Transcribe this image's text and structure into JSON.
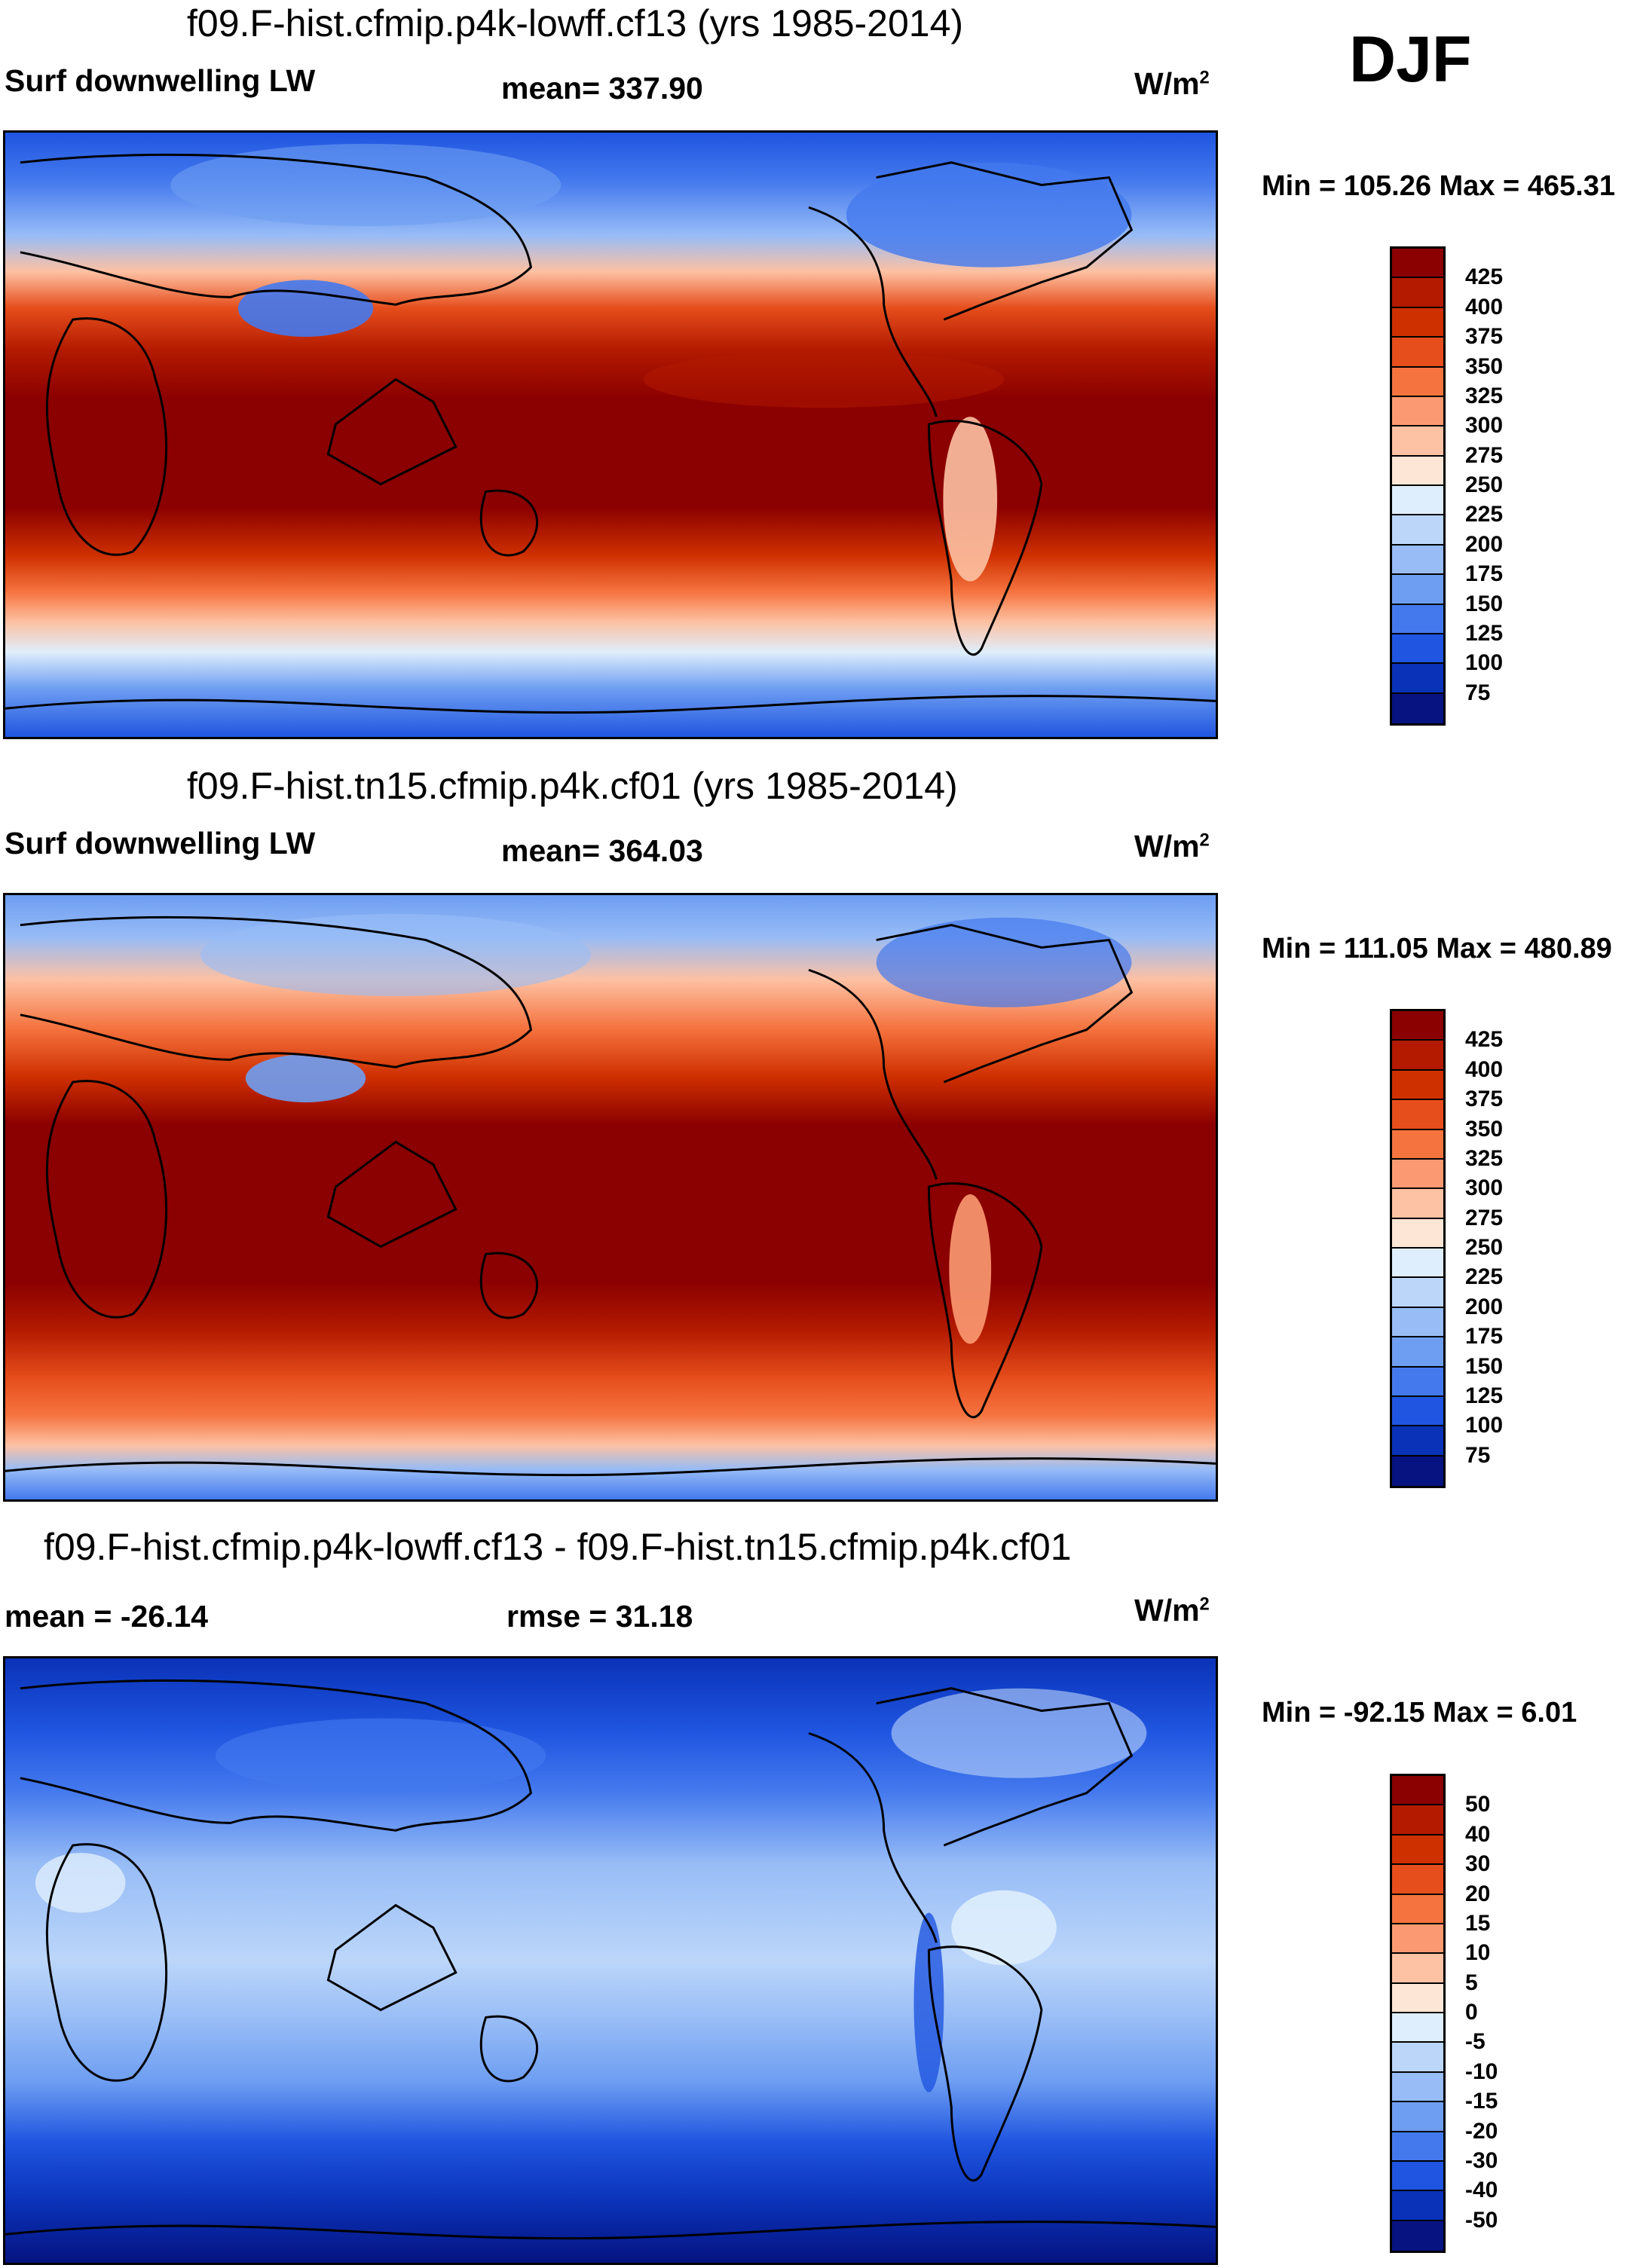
{
  "season": "DJF",
  "unit_main": "W/m",
  "unit_sup": "2",
  "panels": [
    {
      "title": "f09.F-hist.cfmip.p4k-lowff.cf13 (yrs 1985-2014)",
      "left_label": "Surf downwelling LW",
      "center_label": "mean= 337.90",
      "minmax": "Min = 105.26 Max = 465.31",
      "colorbar_labels": [
        "425",
        "400",
        "375",
        "350",
        "325",
        "300",
        "275",
        "250",
        "225",
        "200",
        "175",
        "150",
        "125",
        "100",
        "75"
      ],
      "colorbar_colors": [
        "#8b0000",
        "#b31a00",
        "#cf3000",
        "#e64e1c",
        "#f5733f",
        "#fb9a72",
        "#fdc1a3",
        "#fee6d6",
        "#deeefc",
        "#bcd6fa",
        "#97bcf6",
        "#6e9ef2",
        "#4479ee",
        "#1f55e0",
        "#0a32b8",
        "#061380"
      ]
    },
    {
      "title": "f09.F-hist.tn15.cfmip.p4k.cf01 (yrs 1985-2014)",
      "left_label": "Surf downwelling LW",
      "center_label": "mean= 364.03",
      "minmax": "Min = 111.05 Max = 480.89",
      "colorbar_labels": [
        "425",
        "400",
        "375",
        "350",
        "325",
        "300",
        "275",
        "250",
        "225",
        "200",
        "175",
        "150",
        "125",
        "100",
        "75"
      ],
      "colorbar_colors": [
        "#8b0000",
        "#b31a00",
        "#cf3000",
        "#e64e1c",
        "#f5733f",
        "#fb9a72",
        "#fdc1a3",
        "#fee6d6",
        "#deeefc",
        "#bcd6fa",
        "#97bcf6",
        "#6e9ef2",
        "#4479ee",
        "#1f55e0",
        "#0a32b8",
        "#061380"
      ]
    },
    {
      "title": "f09.F-hist.cfmip.p4k-lowff.cf13 - f09.F-hist.tn15.cfmip.p4k.cf01",
      "left_label": "mean = -26.14",
      "center_label": "rmse =  31.18",
      "minmax": "Min = -92.15 Max =   6.01",
      "colorbar_labels": [
        "50",
        "40",
        "30",
        "20",
        "15",
        "10",
        "5",
        "0",
        "-5",
        "-10",
        "-15",
        "-20",
        "-30",
        "-40",
        "-50"
      ],
      "colorbar_colors": [
        "#8b0000",
        "#b31a00",
        "#cf3000",
        "#e64e1c",
        "#f5733f",
        "#fb9a72",
        "#fdc1a3",
        "#fee6d6",
        "#deeefc",
        "#bcd6fa",
        "#97bcf6",
        "#6e9ef2",
        "#4479ee",
        "#1f55e0",
        "#0a32b8",
        "#061380"
      ]
    }
  ],
  "chart_data": [
    {
      "type": "heatmap",
      "title": "f09.F-hist.cfmip.p4k-lowff.cf13 (yrs 1985-2014)",
      "variable": "Surf downwelling LW",
      "mean": 337.9,
      "min": 105.26,
      "max": 465.31,
      "units": "W/m2",
      "levels": [
        75,
        100,
        125,
        150,
        175,
        200,
        225,
        250,
        275,
        300,
        325,
        350,
        375,
        400,
        425
      ]
    },
    {
      "type": "heatmap",
      "title": "f09.F-hist.tn15.cfmip.p4k.cf01 (yrs 1985-2014)",
      "variable": "Surf downwelling LW",
      "mean": 364.03,
      "min": 111.05,
      "max": 480.89,
      "units": "W/m2",
      "levels": [
        75,
        100,
        125,
        150,
        175,
        200,
        225,
        250,
        275,
        300,
        325,
        350,
        375,
        400,
        425
      ]
    },
    {
      "type": "heatmap",
      "title": "f09.F-hist.cfmip.p4k-lowff.cf13 - f09.F-hist.tn15.cfmip.p4k.cf01",
      "mean": -26.14,
      "rmse": 31.18,
      "min": -92.15,
      "max": 6.01,
      "units": "W/m2",
      "levels": [
        -50,
        -40,
        -30,
        -20,
        -15,
        -10,
        -5,
        0,
        5,
        10,
        15,
        20,
        30,
        40,
        50
      ]
    }
  ]
}
